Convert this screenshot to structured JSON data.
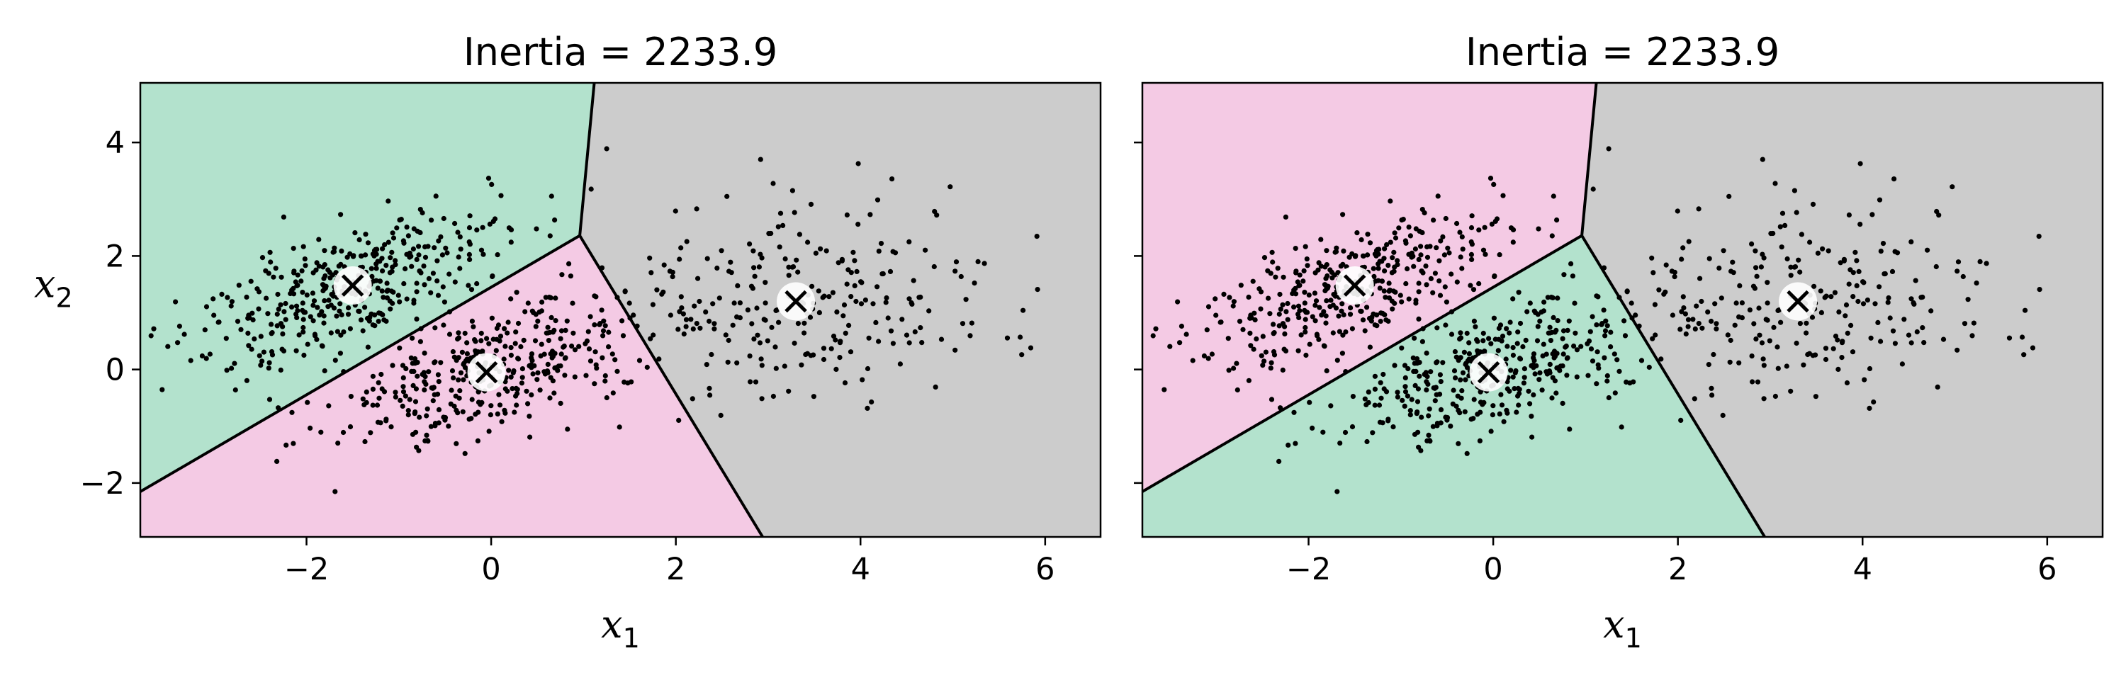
{
  "chart_data": [
    {
      "type": "scatter",
      "subtype": "kmeans-voronoi",
      "title": "Inertia = 2233.9",
      "xlabel": "x",
      "xlabel_subscript": "1",
      "ylabel": "x",
      "ylabel_subscript": "2",
      "show_ylabel": true,
      "show_ytick_labels": true,
      "xlim": [
        -3.8,
        6.6
      ],
      "ylim": [
        -2.95,
        5.05
      ],
      "xticks": [
        -2,
        0,
        2,
        4,
        6
      ],
      "yticks": [
        -2,
        0,
        2,
        4
      ],
      "xtick_labels": [
        "−2",
        "0",
        "2",
        "4",
        "6"
      ],
      "ytick_labels": [
        "−2",
        "0",
        "2",
        "4"
      ],
      "grid": false,
      "centroids": [
        {
          "x": -1.5,
          "y": 1.48,
          "color": "#b3e2cd"
        },
        {
          "x": -0.05,
          "y": -0.05,
          "color": "#f4cae4"
        },
        {
          "x": 3.3,
          "y": 1.2,
          "color": "#cccccc"
        }
      ],
      "colors": {
        "cluster_a": "#b3e2cd",
        "cluster_b": "#f4cae4",
        "cluster_c": "#cccccc"
      }
    },
    {
      "type": "scatter",
      "subtype": "kmeans-voronoi",
      "title": "Inertia = 2233.9",
      "xlabel": "x",
      "xlabel_subscript": "1",
      "ylabel": "",
      "ylabel_subscript": "",
      "show_ylabel": false,
      "show_ytick_labels": false,
      "xlim": [
        -3.8,
        6.6
      ],
      "ylim": [
        -2.95,
        5.05
      ],
      "xticks": [
        -2,
        0,
        2,
        4,
        6
      ],
      "yticks": [
        -2,
        0,
        2,
        4
      ],
      "xtick_labels": [
        "−2",
        "0",
        "2",
        "4",
        "6"
      ],
      "ytick_labels": [
        "",
        "",
        "",
        ""
      ],
      "grid": false,
      "centroids": [
        {
          "x": -1.5,
          "y": 1.48,
          "color": "#f4cae4"
        },
        {
          "x": -0.05,
          "y": -0.05,
          "color": "#b3e2cd"
        },
        {
          "x": 3.3,
          "y": 1.2,
          "color": "#cccccc"
        }
      ],
      "colors": {
        "cluster_a": "#f4cae4",
        "cluster_b": "#b3e2cd",
        "cluster_c": "#cccccc"
      }
    }
  ]
}
